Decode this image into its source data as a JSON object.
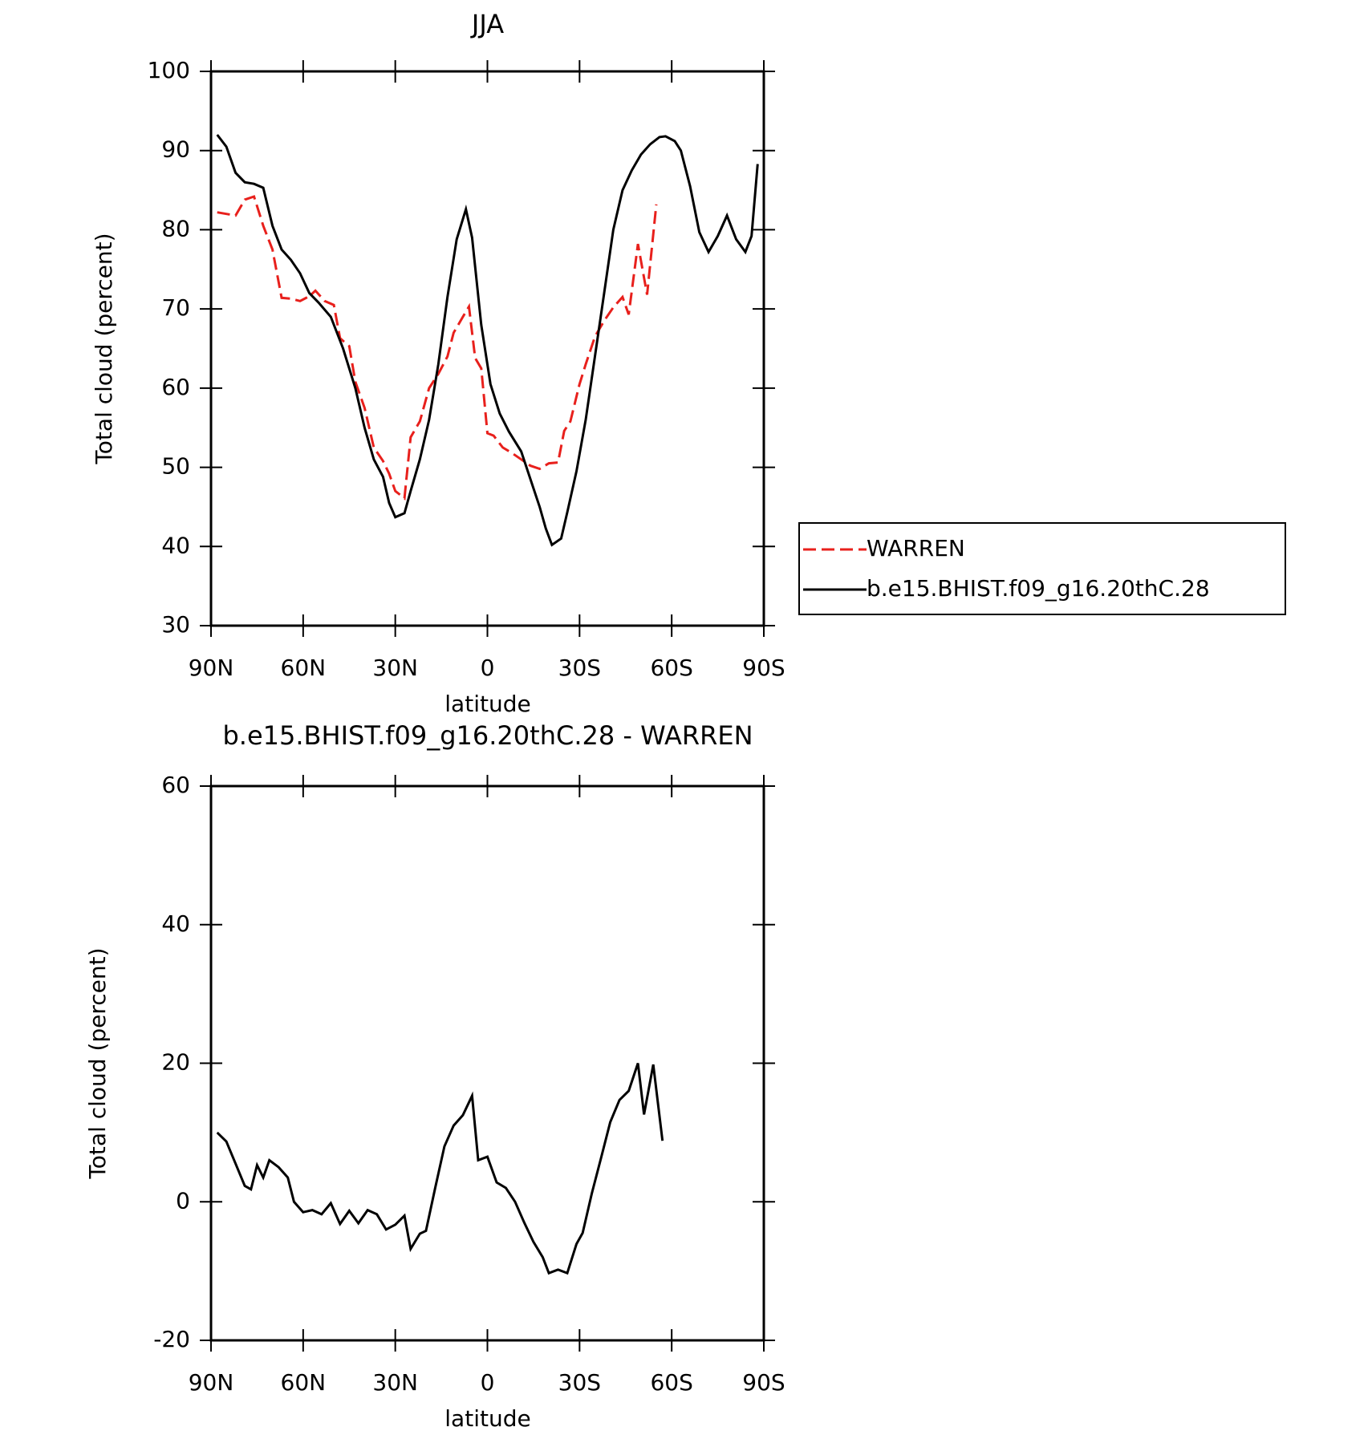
{
  "chart_data": [
    {
      "type": "line",
      "title": "JJA",
      "xlabel": "latitude",
      "ylabel": "Total cloud (percent)",
      "xlim": [
        90,
        -90
      ],
      "ylim": [
        30,
        100
      ],
      "xticks": [
        {
          "value": 90,
          "label": "90N"
        },
        {
          "value": 60,
          "label": "60N"
        },
        {
          "value": 30,
          "label": "30N"
        },
        0,
        {
          "value": -30,
          "label": "30S"
        },
        {
          "value": -60,
          "label": "60S"
        },
        {
          "value": -90,
          "label": "90S"
        }
      ],
      "yticks": [
        30,
        40,
        50,
        60,
        70,
        80,
        90,
        100
      ],
      "series": [
        {
          "name": "WARREN",
          "color": "#e8201c",
          "dashed": true,
          "x": [
            88,
            85,
            82,
            79,
            76,
            73,
            70,
            67,
            64,
            61,
            58,
            56,
            53,
            50,
            48,
            45,
            43,
            40,
            37,
            34,
            32,
            30,
            27,
            25,
            22,
            19,
            16,
            13,
            11,
            8,
            6,
            4,
            2,
            0,
            -2,
            -5,
            -8,
            -11,
            -14,
            -17,
            -20,
            -23,
            -25,
            -27,
            -30,
            -32,
            -35,
            -38,
            -41,
            -44,
            -46,
            -49,
            -52,
            -55
          ],
          "values": [
            82.2,
            82,
            81.8,
            83.8,
            84.2,
            80.5,
            77.5,
            71.4,
            71.3,
            71,
            71.6,
            72.3,
            71,
            70.5,
            66.3,
            65.3,
            60.8,
            57.5,
            52.5,
            50.8,
            49.2,
            47,
            46.1,
            53.8,
            55.8,
            60,
            61.8,
            64,
            67,
            69,
            70.3,
            63.8,
            62.5,
            54.3,
            54,
            52.5,
            51.8,
            51,
            50.2,
            49.8,
            50.5,
            50.6,
            54.6,
            55.8,
            60.5,
            63,
            66.5,
            68.5,
            70.2,
            71.5,
            69.3,
            78.2,
            71.8,
            83.2
          ]
        },
        {
          "name": "b.e15.BHIST.f09_g16.20thC.28",
          "color": "#000000",
          "dashed": false,
          "x": [
            88,
            85,
            82,
            79,
            76,
            73,
            70,
            67,
            64,
            61,
            58,
            55,
            51,
            47,
            43,
            40,
            37,
            34,
            32,
            30,
            27,
            25,
            22,
            19,
            16,
            13,
            10,
            7,
            5,
            2,
            -1,
            -4,
            -7,
            -11,
            -14,
            -17,
            -19,
            -21,
            -24,
            -26,
            -29,
            -32,
            -35,
            -38,
            -41,
            -44,
            -47,
            -50,
            -53,
            -56,
            -58,
            -61,
            -63,
            -66,
            -69,
            -72,
            -75,
            -78,
            -81,
            -84,
            -86,
            -88
          ],
          "values": [
            92,
            90.5,
            87.2,
            86,
            85.8,
            85.3,
            80.5,
            77.5,
            76.2,
            74.5,
            72,
            70.8,
            69,
            65,
            60,
            55,
            51,
            48.8,
            45.5,
            43.7,
            44.2,
            47,
            51,
            56,
            63,
            71.5,
            78.8,
            82.6,
            79,
            68,
            60.5,
            56.8,
            54.5,
            52,
            48.5,
            45,
            42.3,
            40.2,
            41,
            44.3,
            49.5,
            56,
            64,
            72,
            80,
            85,
            87.5,
            89.5,
            90.8,
            91.7,
            91.8,
            91.2,
            90,
            85.5,
            79.7,
            77.2,
            79.2,
            81.8,
            78.8,
            77.2,
            79.2,
            88.3
          ]
        }
      ]
    },
    {
      "type": "line",
      "title": "b.e15.BHIST.f09_g16.20thC.28 - WARREN",
      "xlabel": "latitude",
      "ylabel": "Total cloud (percent)",
      "xlim": [
        90,
        -90
      ],
      "ylim": [
        -20,
        60
      ],
      "xticks": [
        {
          "value": 90,
          "label": "90N"
        },
        {
          "value": 60,
          "label": "60N"
        },
        {
          "value": 30,
          "label": "30N"
        },
        0,
        {
          "value": -30,
          "label": "30S"
        },
        {
          "value": -60,
          "label": "60S"
        },
        {
          "value": -90,
          "label": "90S"
        }
      ],
      "yticks": [
        -20,
        0,
        20,
        40,
        60
      ],
      "color": "#000000",
      "x": [
        88,
        85,
        82,
        79,
        77,
        75,
        73,
        71,
        68,
        65,
        63,
        60,
        57,
        54,
        51,
        48,
        45,
        42,
        39,
        36,
        33,
        30,
        27,
        25,
        22,
        20,
        17,
        14,
        11,
        8,
        5,
        3,
        0,
        -3,
        -6,
        -9,
        -12,
        -15,
        -18,
        -20,
        -23,
        -26,
        -29,
        -31,
        -34,
        -37,
        -40,
        -43,
        -46,
        -49,
        -51,
        -54,
        -57
      ],
      "values": [
        10,
        8.7,
        5.5,
        2.3,
        1.8,
        5.3,
        3.5,
        6,
        5,
        3.5,
        0,
        -1.5,
        -1.2,
        -1.8,
        -0.2,
        -3.2,
        -1.3,
        -3.1,
        -1.2,
        -1.8,
        -4,
        -3.3,
        -2,
        -6.8,
        -4.6,
        -4.2,
        2,
        8,
        11,
        12.5,
        15.3,
        6,
        6.5,
        2.8,
        2,
        0,
        -3,
        -5.8,
        -8,
        -10.3,
        -9.8,
        -10.3,
        -6.1,
        -4.5,
        1.2,
        6.3,
        11.5,
        14.7,
        16,
        20,
        12.6,
        19.8,
        8.8
      ]
    }
  ]
}
